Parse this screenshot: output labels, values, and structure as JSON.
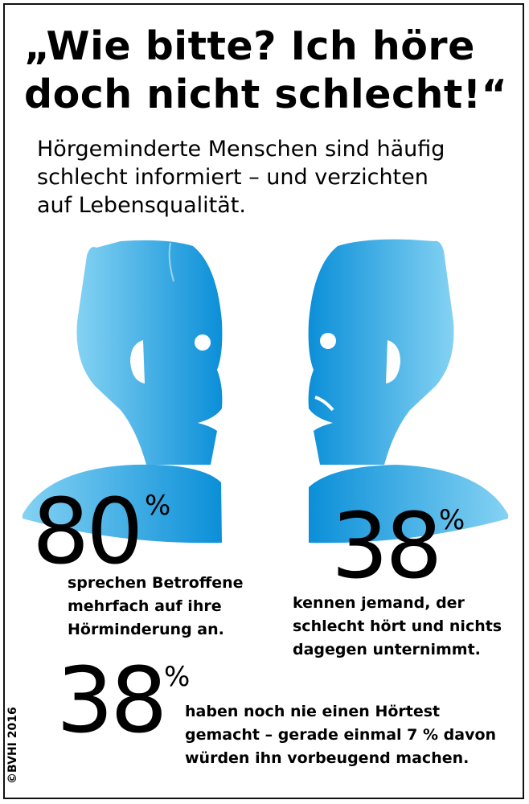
{
  "header": {
    "title_line1": "„Wie bitte? Ich höre",
    "title_line2": "doch nicht schlecht!“",
    "subtitle_line1": "Hörgeminderte Menschen sind häufig",
    "subtitle_line2": "schlecht informiert – und verzichten",
    "subtitle_line3": "auf Lebensqualität."
  },
  "stats": [
    {
      "value": "80",
      "unit": "%",
      "lines": [
        "sprechen Betroffene",
        "mehrfach auf ihre",
        "Hörminderung an."
      ]
    },
    {
      "value": "38",
      "unit": "%",
      "lines": [
        "kennen jemand, der",
        "schlecht hört und nichts",
        "dagegen unternimmt."
      ]
    },
    {
      "value": "38",
      "unit": "%",
      "lines": [
        "haben noch nie einen Hörtest",
        "gemacht – gerade einmal 7 % davon",
        "würden ihn vorbeugend machen."
      ]
    }
  ],
  "copyright": "©BVHI 2016",
  "colors": {
    "blue_light": "#7fd0f2",
    "blue_dark": "#0a8fd8",
    "text": "#000000"
  }
}
